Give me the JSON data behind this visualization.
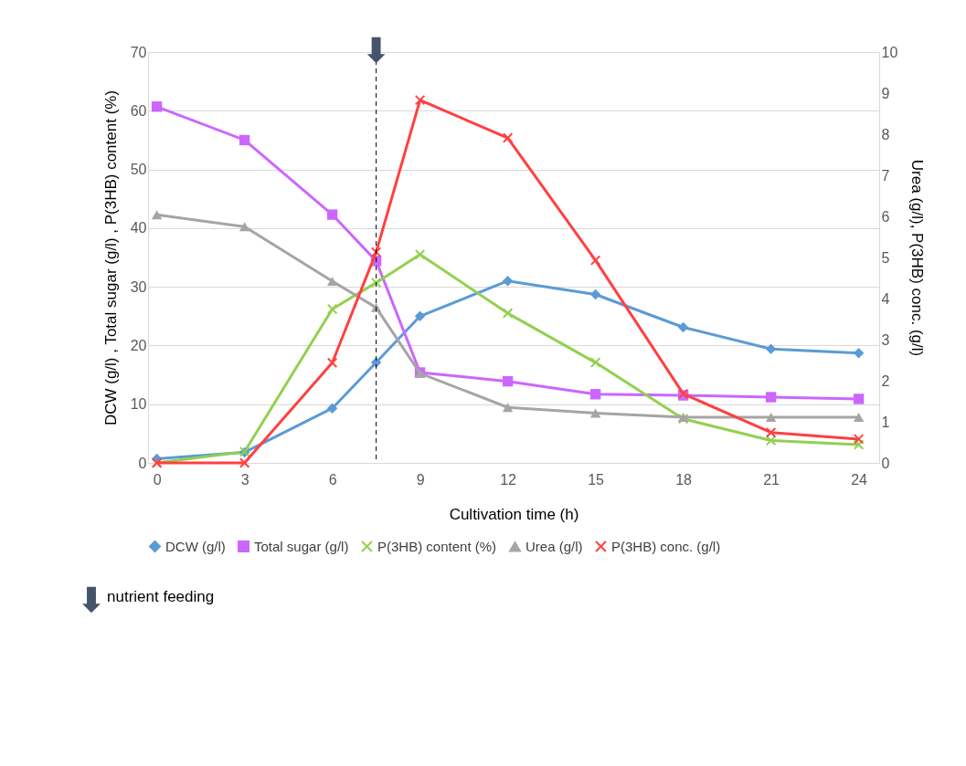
{
  "chart_data": {
    "type": "line",
    "xlabel": "Cultivation time (h)",
    "ylabel": "DCW (g/l) , Total sugar (g/l) , P(3HB) content (%)",
    "y2label": "Urea (g/l), P(3HB) conc. (g/l)",
    "x": [
      0,
      3,
      6,
      7.5,
      9,
      12,
      15,
      18,
      21,
      24
    ],
    "xlim": [
      -0.3,
      24.7
    ],
    "xticks": [
      0,
      3,
      6,
      9,
      12,
      15,
      18,
      21,
      24
    ],
    "ylim": [
      0,
      70
    ],
    "yticks": [
      0,
      10,
      20,
      30,
      40,
      50,
      60,
      70
    ],
    "y2lim": [
      0,
      10
    ],
    "y2ticks": [
      0,
      1,
      2,
      3,
      4,
      5,
      6,
      7,
      8,
      9,
      10
    ],
    "grid": "y",
    "legend": "bottom",
    "series": [
      {
        "name": "DCW (g/l)",
        "color": "#5b9bd5",
        "marker": "diamond",
        "values": [
          0.7,
          1.8,
          9.3,
          17.1,
          25.0,
          31.0,
          28.7,
          23.1,
          19.4,
          18.7
        ]
      },
      {
        "name": "Total sugar (g/l)",
        "color": "#cc66ff",
        "marker": "square",
        "values": [
          60.7,
          55.0,
          42.3,
          34.4,
          15.4,
          13.9,
          11.7,
          11.5,
          11.2,
          10.9
        ]
      },
      {
        "name": "P(3HB) content (%)",
        "color": "#92d050",
        "marker": "cross",
        "values": [
          0,
          1.9,
          26.2,
          30.7,
          35.5,
          25.5,
          17.1,
          7.5,
          3.8,
          3.1
        ]
      },
      {
        "name": "Urea (g/l)",
        "color": "#a5a5a5",
        "marker": "triangle",
        "axis": "y2",
        "values": [
          6.04,
          5.75,
          4.42,
          3.78,
          2.18,
          1.35,
          1.21,
          1.11,
          1.11,
          1.11
        ]
      },
      {
        "name": "P(3HB) conc. (g/l)",
        "color": "#ff4040",
        "marker": "cross",
        "axis": "y2",
        "values": [
          0,
          0,
          2.44,
          5.13,
          8.83,
          7.91,
          4.93,
          1.68,
          0.74,
          0.58
        ]
      }
    ],
    "ref_lines": [
      {
        "axis": "x",
        "value": 7.5,
        "color": "#000000",
        "line_style": "dashed"
      }
    ],
    "annotations": [
      "nutrient feeding"
    ]
  }
}
